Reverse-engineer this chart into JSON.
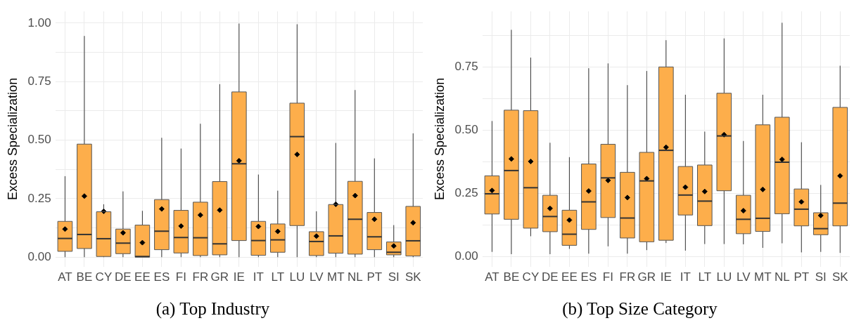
{
  "chart_data": [
    {
      "type": "box",
      "title": "(a) Top Industry",
      "ylabel": "Excess Specialization",
      "categories": [
        "AT",
        "BE",
        "CY",
        "DE",
        "EE",
        "ES",
        "FI",
        "FR",
        "GR",
        "IE",
        "IT",
        "LT",
        "LU",
        "LV",
        "MT",
        "NL",
        "PT",
        "SI",
        "SK"
      ],
      "color": "#fdae4b",
      "grid": true,
      "marker": "diamond",
      "ylim": [
        -0.04,
        1.05
      ],
      "yticks": [
        {
          "value": 0,
          "label": "0.00"
        },
        {
          "value": 0.125,
          "label": null
        },
        {
          "value": 0.25,
          "label": "0.25"
        },
        {
          "value": 0.375,
          "label": null
        },
        {
          "value": 0.5,
          "label": "0.50"
        },
        {
          "value": 0.625,
          "label": null
        },
        {
          "value": 0.75,
          "label": "0.75"
        },
        {
          "value": 0.875,
          "label": null
        },
        {
          "value": 1,
          "label": "1.00"
        }
      ],
      "boxes": [
        {
          "low": 0,
          "q1": 0.025,
          "median": 0.08,
          "q3": 0.153,
          "high": 0.346,
          "mean": 0.12
        },
        {
          "low": 0,
          "q1": 0.037,
          "median": 0.097,
          "q3": 0.483,
          "high": 0.945,
          "mean": 0.261
        },
        {
          "low": 0,
          "q1": 0.003,
          "median": 0.079,
          "q3": 0.194,
          "high": 0.226,
          "mean": 0.196
        },
        {
          "low": 0,
          "q1": 0.015,
          "median": 0.06,
          "q3": 0.12,
          "high": 0.281,
          "mean": 0.104
        },
        {
          "low": 0,
          "q1": 0,
          "median": 0.003,
          "q3": 0.137,
          "high": 0.198,
          "mean": 0.062
        },
        {
          "low": 0,
          "q1": 0.032,
          "median": 0.111,
          "q3": 0.246,
          "high": 0.51,
          "mean": 0.206
        },
        {
          "low": 0,
          "q1": 0.018,
          "median": 0.084,
          "q3": 0.2,
          "high": 0.464,
          "mean": 0.133
        },
        {
          "low": 0,
          "q1": 0.007,
          "median": 0.083,
          "q3": 0.235,
          "high": 0.57,
          "mean": 0.18
        },
        {
          "low": 0,
          "q1": 0.01,
          "median": 0.057,
          "q3": 0.323,
          "high": 0.739,
          "mean": 0.201
        },
        {
          "low": 0,
          "q1": 0.071,
          "median": 0.399,
          "q3": 0.706,
          "high": 0.998,
          "mean": 0.412
        },
        {
          "low": 0,
          "q1": 0.008,
          "median": 0.071,
          "q3": 0.153,
          "high": 0.353,
          "mean": 0.131
        },
        {
          "low": 0,
          "q1": 0.021,
          "median": 0.074,
          "q3": 0.142,
          "high": 0.284,
          "mean": 0.11
        },
        {
          "low": 0,
          "q1": 0.135,
          "median": 0.515,
          "q3": 0.658,
          "high": 0.995,
          "mean": 0.439
        },
        {
          "low": 0,
          "q1": 0.007,
          "median": 0.067,
          "q3": 0.109,
          "high": 0.196,
          "mean": 0.09
        },
        {
          "low": 0,
          "q1": 0.017,
          "median": 0.091,
          "q3": 0.225,
          "high": 0.488,
          "mean": 0.226
        },
        {
          "low": 0,
          "q1": 0.013,
          "median": 0.162,
          "q3": 0.324,
          "high": 0.714,
          "mean": 0.263
        },
        {
          "low": 0,
          "q1": 0.032,
          "median": 0.087,
          "q3": 0.191,
          "high": 0.422,
          "mean": 0.162
        },
        {
          "low": 0,
          "q1": 0.01,
          "median": 0.021,
          "q3": 0.065,
          "high": 0.137,
          "mean": 0.048
        },
        {
          "low": 0,
          "q1": 0.005,
          "median": 0.07,
          "q3": 0.217,
          "high": 0.529,
          "mean": 0.147
        }
      ]
    },
    {
      "type": "box",
      "title": "(b) Top Size Category",
      "ylabel": "Excess Specialization",
      "categories": [
        "AT",
        "BE",
        "CY",
        "DE",
        "EE",
        "ES",
        "FI",
        "FR",
        "GR",
        "IE",
        "IT",
        "LT",
        "LU",
        "LV",
        "MT",
        "NL",
        "PT",
        "SI",
        "SK"
      ],
      "color": "#fdae4b",
      "grid": true,
      "marker": "diamond",
      "ylim": [
        -0.04,
        0.97
      ],
      "yticks": [
        {
          "value": 0,
          "label": "0.00"
        },
        {
          "value": 0.125,
          "label": null
        },
        {
          "value": 0.25,
          "label": "0.25"
        },
        {
          "value": 0.375,
          "label": null
        },
        {
          "value": 0.5,
          "label": "0.50"
        },
        {
          "value": 0.625,
          "label": null
        },
        {
          "value": 0.75,
          "label": "0.75"
        },
        {
          "value": 0.875,
          "label": null
        }
      ],
      "boxes": [
        {
          "low": 0.018,
          "q1": 0.168,
          "median": 0.248,
          "q3": 0.319,
          "high": 0.536,
          "mean": 0.261
        },
        {
          "low": 0.009,
          "q1": 0.147,
          "median": 0.34,
          "q3": 0.579,
          "high": 0.897,
          "mean": 0.386
        },
        {
          "low": 0.08,
          "q1": 0.112,
          "median": 0.272,
          "q3": 0.577,
          "high": 0.787,
          "mean": 0.376
        },
        {
          "low": 0.009,
          "q1": 0.098,
          "median": 0.158,
          "q3": 0.242,
          "high": 0.45,
          "mean": 0.19
        },
        {
          "low": 0.03,
          "q1": 0.044,
          "median": 0.088,
          "q3": 0.183,
          "high": 0.393,
          "mean": 0.144
        },
        {
          "low": 0.011,
          "q1": 0.107,
          "median": 0.216,
          "q3": 0.366,
          "high": 0.745,
          "mean": 0.259
        },
        {
          "low": 0.04,
          "q1": 0.154,
          "median": 0.311,
          "q3": 0.444,
          "high": 0.764,
          "mean": 0.301
        },
        {
          "low": 0.011,
          "q1": 0.073,
          "median": 0.152,
          "q3": 0.333,
          "high": 0.678,
          "mean": 0.233
        },
        {
          "low": 0.025,
          "q1": 0.058,
          "median": 0.299,
          "q3": 0.412,
          "high": 0.734,
          "mean": 0.308
        },
        {
          "low": 0.053,
          "q1": 0.064,
          "median": 0.42,
          "q3": 0.75,
          "high": 0.856,
          "mean": 0.432
        },
        {
          "low": 0.023,
          "q1": 0.164,
          "median": 0.243,
          "q3": 0.356,
          "high": 0.64,
          "mean": 0.274
        },
        {
          "low": 0.049,
          "q1": 0.122,
          "median": 0.219,
          "q3": 0.362,
          "high": 0.494,
          "mean": 0.257
        },
        {
          "low": 0.049,
          "q1": 0.26,
          "median": 0.477,
          "q3": 0.646,
          "high": 0.863,
          "mean": 0.482
        },
        {
          "low": 0.048,
          "q1": 0.09,
          "median": 0.147,
          "q3": 0.242,
          "high": 0.457,
          "mean": 0.181
        },
        {
          "low": 0.034,
          "q1": 0.099,
          "median": 0.151,
          "q3": 0.521,
          "high": 0.64,
          "mean": 0.265
        },
        {
          "low": 0.052,
          "q1": 0.169,
          "median": 0.373,
          "q3": 0.551,
          "high": 0.925,
          "mean": 0.384
        },
        {
          "low": 0.016,
          "q1": 0.121,
          "median": 0.187,
          "q3": 0.267,
          "high": 0.452,
          "mean": 0.216
        },
        {
          "low": 0.018,
          "q1": 0.086,
          "median": 0.11,
          "q3": 0.173,
          "high": 0.283,
          "mean": 0.162
        },
        {
          "low": 0.014,
          "q1": 0.121,
          "median": 0.211,
          "q3": 0.59,
          "high": 0.755,
          "mean": 0.319
        }
      ]
    }
  ]
}
